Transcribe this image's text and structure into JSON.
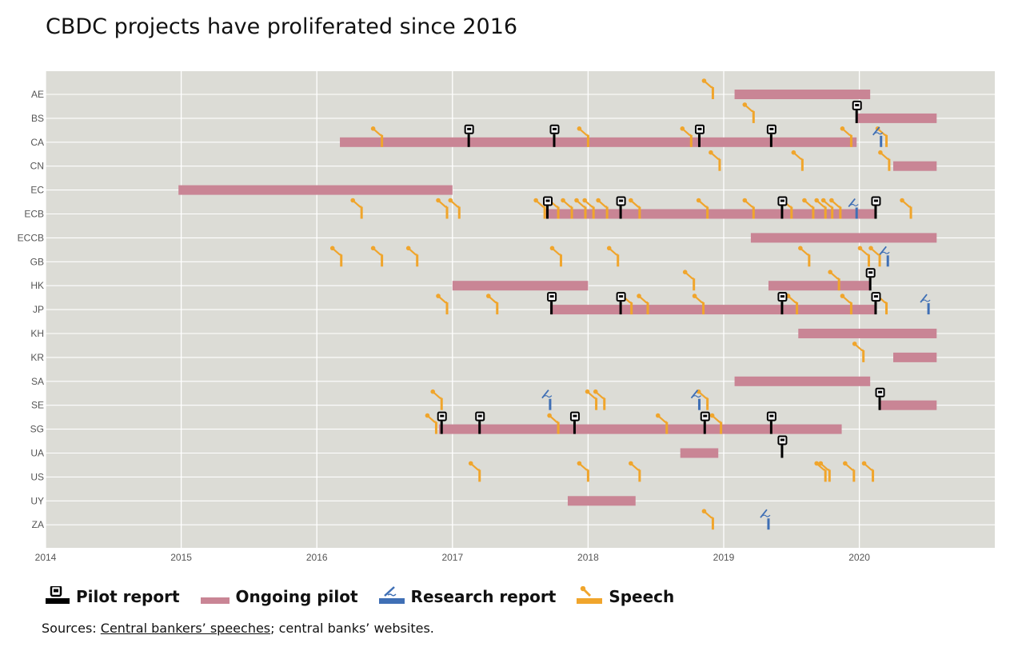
{
  "title": "CBDC projects have proliferated since 2016",
  "legend": {
    "pilot_report": "Pilot report",
    "ongoing_pilot": "Ongoing pilot",
    "research_report": "Research report",
    "speech": "Speech"
  },
  "sources": {
    "prefix": "Sources: ",
    "link": "Central bankers’ speeches",
    "suffix": "; central banks’ websites."
  },
  "colors": {
    "pilot_report": "#000000",
    "ongoing_pilot": "#c98595",
    "research_report": "#3f6fb5",
    "speech": "#f0a52c",
    "plot_background": "#dcdcd6",
    "grid": "#ffffff"
  },
  "icons": {
    "pilot_report": "document-icon",
    "research_report": "quill-pen-icon",
    "speech": "gavel-microphone-icon"
  },
  "chart_data": {
    "type": "timeline",
    "title": "CBDC projects have proliferated since 2016",
    "xlabel": "",
    "ylabel": "",
    "xlim": [
      2014,
      2020.99
    ],
    "x_ticks": [
      "2014",
      "2015",
      "2016",
      "2017",
      "2018",
      "2019",
      "2020"
    ],
    "grid": true,
    "legend_position": "bottom",
    "rows": [
      {
        "code": "AE",
        "pilots": [
          [
            2019.08,
            2020.08
          ]
        ],
        "speeches": [
          2018.92
        ],
        "research": [],
        "reports": []
      },
      {
        "code": "BS",
        "pilots": [
          [
            2019.98,
            2020.57
          ]
        ],
        "speeches": [
          2019.22
        ],
        "research": [],
        "reports": [
          2019.98
        ]
      },
      {
        "code": "CA",
        "pilots": [
          [
            2016.17,
            2019.98
          ]
        ],
        "speeches": [
          2016.48,
          2018.0,
          2018.76,
          2019.94,
          2020.2
        ],
        "research": [
          2020.16
        ],
        "reports": [
          2017.12,
          2017.75,
          2018.82,
          2019.35
        ]
      },
      {
        "code": "CN",
        "pilots": [
          [
            2020.25,
            2020.57
          ]
        ],
        "speeches": [
          2018.97,
          2019.58,
          2020.22
        ],
        "research": [],
        "reports": []
      },
      {
        "code": "EC",
        "pilots": [
          [
            2014.98,
            2017.0
          ]
        ],
        "speeches": [],
        "research": [],
        "reports": []
      },
      {
        "code": "ECB",
        "pilots": [
          [
            2017.68,
            2020.12
          ]
        ],
        "speeches": [
          2016.33,
          2016.96,
          2017.05,
          2017.68,
          2017.78,
          2017.88,
          2017.98,
          2018.04,
          2018.14,
          2018.38,
          2018.88,
          2019.22,
          2019.5,
          2019.66,
          2019.75,
          2019.8,
          2019.86,
          2020.38
        ],
        "research": [
          2019.98
        ],
        "reports": [
          2017.7,
          2018.24,
          2019.43,
          2020.12
        ]
      },
      {
        "code": "ECCB",
        "pilots": [
          [
            2019.2,
            2020.57
          ]
        ],
        "speeches": [],
        "research": [],
        "reports": []
      },
      {
        "code": "GB",
        "pilots": [],
        "speeches": [
          2016.18,
          2016.48,
          2016.74,
          2017.8,
          2018.22,
          2019.63,
          2020.07,
          2020.15
        ],
        "research": [
          2020.21
        ],
        "reports": []
      },
      {
        "code": "HK",
        "pilots": [
          [
            2017.0,
            2018.0
          ],
          [
            2019.33,
            2020.08
          ]
        ],
        "speeches": [
          2018.78,
          2019.85
        ],
        "research": [],
        "reports": [
          2020.08
        ]
      },
      {
        "code": "JP",
        "pilots": [
          [
            2017.72,
            2020.12
          ]
        ],
        "speeches": [
          2016.96,
          2017.33,
          2018.32,
          2018.44,
          2018.85,
          2019.54,
          2019.94,
          2020.2
        ],
        "research": [
          2020.51
        ],
        "reports": [
          2017.73,
          2018.24,
          2019.43,
          2020.12
        ]
      },
      {
        "code": "KH",
        "pilots": [
          [
            2019.55,
            2020.57
          ]
        ],
        "speeches": [],
        "research": [],
        "reports": []
      },
      {
        "code": "KR",
        "pilots": [
          [
            2020.25,
            2020.57
          ]
        ],
        "speeches": [
          2020.03
        ],
        "research": [],
        "reports": []
      },
      {
        "code": "SA",
        "pilots": [
          [
            2019.08,
            2020.08
          ]
        ],
        "speeches": [],
        "research": [],
        "reports": []
      },
      {
        "code": "SE",
        "pilots": [
          [
            2020.15,
            2020.57
          ]
        ],
        "speeches": [
          2016.92,
          2018.06,
          2018.12,
          2018.88
        ],
        "research": [
          2017.72,
          2018.82
        ],
        "reports": [
          2020.15
        ]
      },
      {
        "code": "SG",
        "pilots": [
          [
            2016.9,
            2019.87
          ]
        ],
        "speeches": [
          2016.88,
          2017.78,
          2018.58,
          2018.98
        ],
        "research": [],
        "reports": [
          2016.92,
          2017.2,
          2017.9,
          2018.86,
          2019.35
        ]
      },
      {
        "code": "UA",
        "pilots": [
          [
            2018.68,
            2018.96
          ]
        ],
        "speeches": [],
        "research": [],
        "reports": [
          2019.43
        ]
      },
      {
        "code": "US",
        "pilots": [],
        "speeches": [
          2017.2,
          2018.0,
          2018.38,
          2019.75,
          2019.78,
          2019.96,
          2020.1
        ],
        "research": [],
        "reports": []
      },
      {
        "code": "UY",
        "pilots": [
          [
            2017.85,
            2018.35
          ]
        ],
        "speeches": [],
        "research": [],
        "reports": []
      },
      {
        "code": "ZA",
        "pilots": [],
        "speeches": [
          2018.92
        ],
        "research": [
          2019.33
        ],
        "reports": []
      }
    ]
  }
}
